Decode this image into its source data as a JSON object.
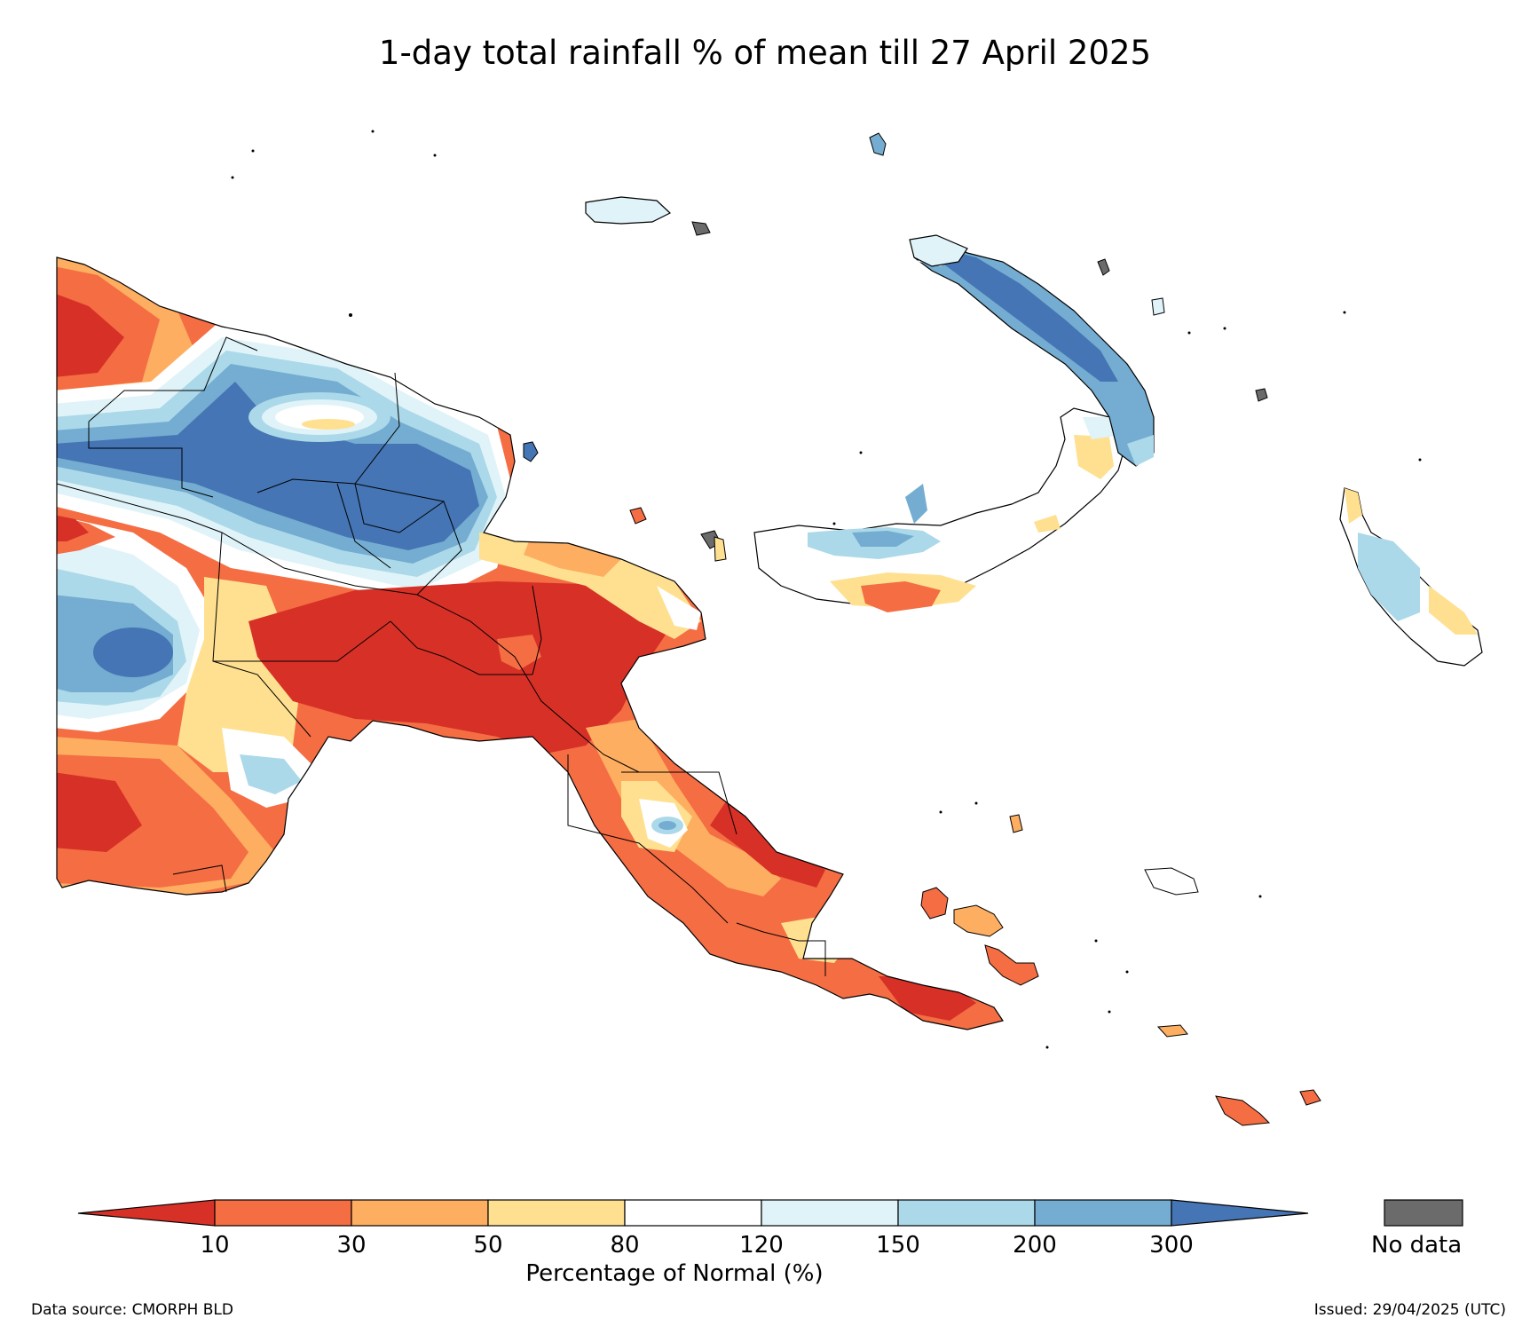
{
  "title": "1-day total rainfall % of mean till 27 April 2025",
  "legend": {
    "label": "Percentage of Normal (%)",
    "ticks": [
      "10",
      "30",
      "50",
      "80",
      "120",
      "150",
      "200",
      "300"
    ],
    "colors": [
      "#d73027",
      "#f46d43",
      "#fdae61",
      "#fee090",
      "#ffffff",
      "#e0f3f8",
      "#abd9e9",
      "#74add1",
      "#4575b4"
    ],
    "no_data_label": "No data",
    "no_data_color": "#6b6b6b"
  },
  "footer": {
    "source": "Data source: CMORPH BLD",
    "issued": "Issued: 29/04/2025 (UTC)"
  }
}
